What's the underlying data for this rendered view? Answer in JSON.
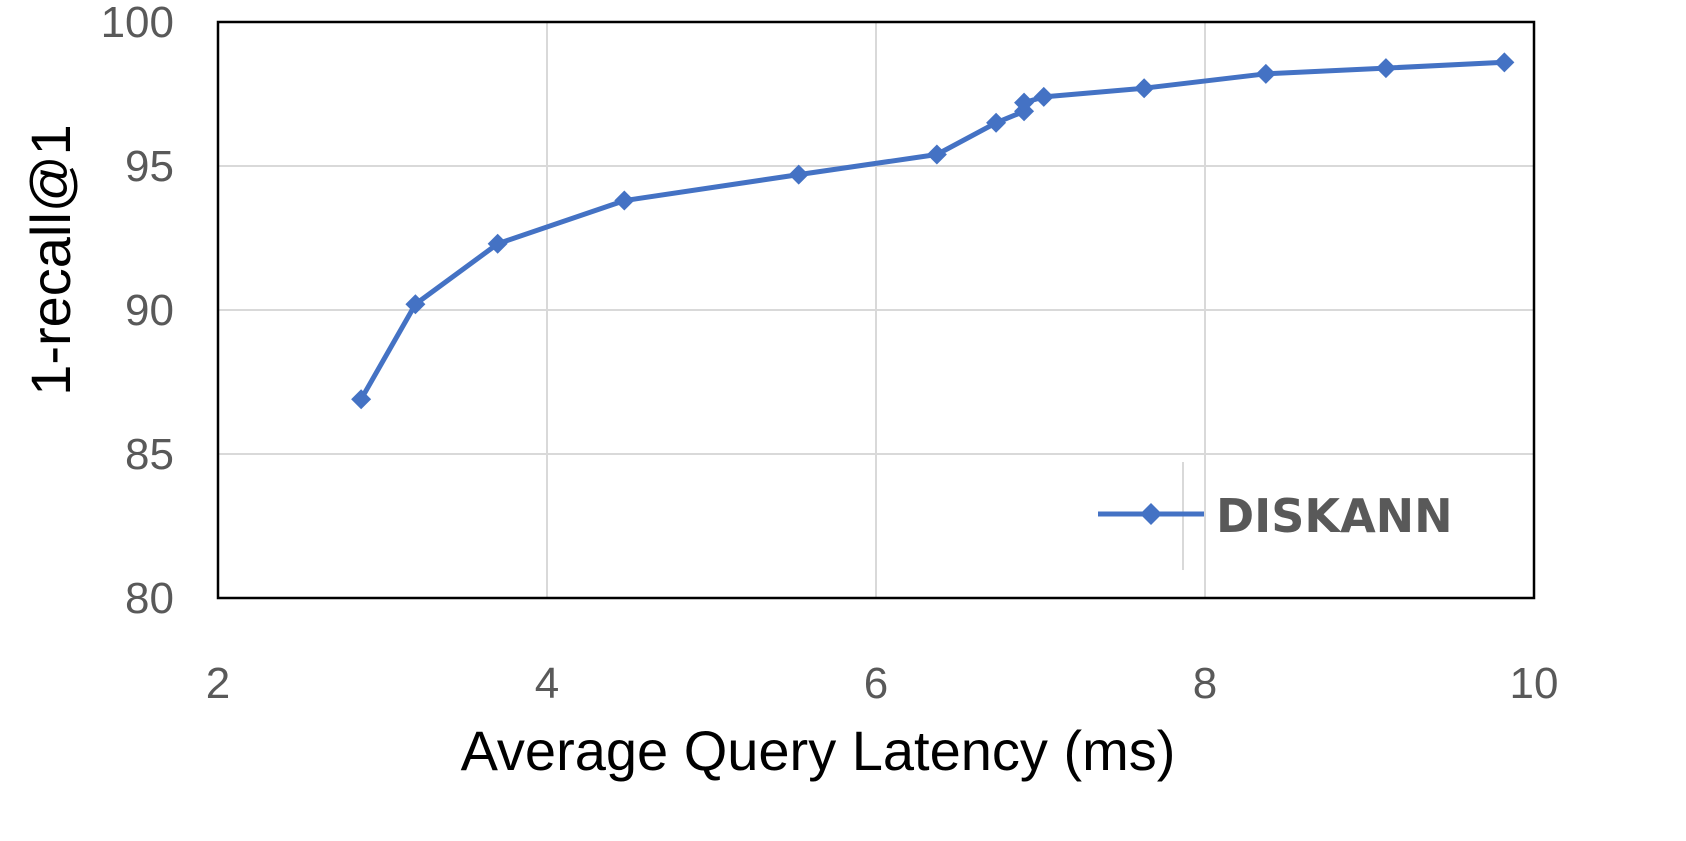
{
  "chart_data": {
    "type": "line",
    "xlabel": "Average Query Latency (ms)",
    "ylabel": "1-recall@1",
    "xlim": [
      2,
      10
    ],
    "ylim": [
      80,
      100
    ],
    "xticks": [
      "2",
      "4",
      "6",
      "8",
      "10"
    ],
    "yticks": [
      "80",
      "85",
      "90",
      "95",
      "100"
    ],
    "grid": true,
    "legend_position": "bottom-right",
    "series": [
      {
        "name": "DISKANN",
        "color": "#4472C4",
        "marker": "diamond",
        "x": [
          2.87,
          3.2,
          3.7,
          4.47,
          5.53,
          6.37,
          6.73,
          6.9,
          6.9,
          7.02,
          7.63,
          8.37,
          9.1,
          9.82
        ],
        "y": [
          86.9,
          90.2,
          92.3,
          93.8,
          94.7,
          95.4,
          96.5,
          96.9,
          97.2,
          97.4,
          97.7,
          98.2,
          98.4,
          98.6
        ]
      }
    ]
  }
}
